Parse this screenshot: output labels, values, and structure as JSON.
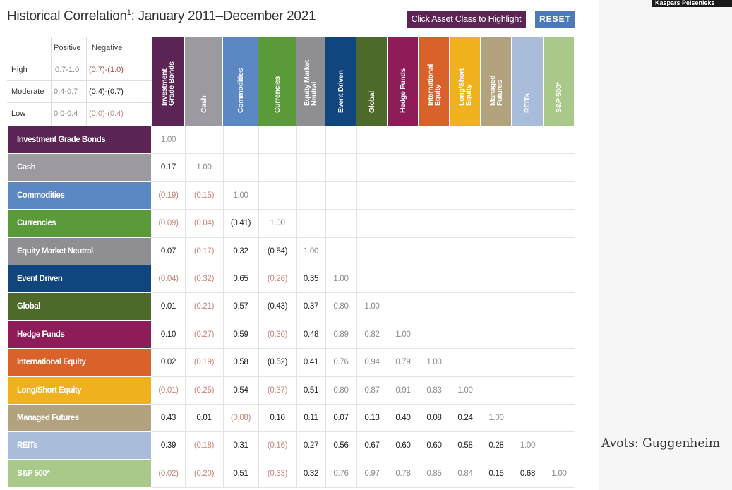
{
  "title": "Historical Correlation",
  "title_sup": "1",
  "title_suffix": ": January 2011–December 2021",
  "buttons": {
    "highlight": "Click Asset Class to Highlight",
    "reset": "RESET"
  },
  "credit": "Kaspars Peisenieks",
  "source": "Avots: Guggenheim",
  "legend": {
    "headers": [
      "Positive",
      "Negative"
    ],
    "rows": [
      {
        "label": "High",
        "positive": "0.7-1.0",
        "negative": "(0.7)-(1.0)"
      },
      {
        "label": "Moderate",
        "positive": "0.4-0.7",
        "negative": "(0.4)-(0.7)"
      },
      {
        "label": "Low",
        "positive": "0.0-0.4",
        "negative": "(0.0)-(0.4)"
      }
    ]
  },
  "chart_data": {
    "type": "table",
    "title": "Historical Correlation: January 2011–December 2021",
    "assets": [
      {
        "name": "Investment Grade Bonds",
        "col_label": "Investment\nGrade Bonds",
        "color": "#5b2454"
      },
      {
        "name": "Cash",
        "col_label": "Cash",
        "color": "#9c99a0"
      },
      {
        "name": "Commodities",
        "col_label": "Commodities",
        "color": "#5b87c2"
      },
      {
        "name": "Currencies",
        "col_label": "Currencies",
        "color": "#5a9a3a"
      },
      {
        "name": "Equity Market Neutral",
        "col_label": "Equity Market\nNeutral",
        "color": "#8f8e92"
      },
      {
        "name": "Event Driven",
        "col_label": "Event Driven",
        "color": "#10457e"
      },
      {
        "name": "Global",
        "col_label": "Global",
        "color": "#4e6a2a"
      },
      {
        "name": "Hedge Funds",
        "col_label": "Hedge Funds",
        "color": "#8e1c59"
      },
      {
        "name": "International Equity",
        "col_label": "International\nEquity",
        "color": "#d9612a"
      },
      {
        "name": "Long/Short Equity",
        "col_label": "Long/Short\nEquity",
        "color": "#f0b11e"
      },
      {
        "name": "Managed Futures",
        "col_label": "Managed\nFutures",
        "color": "#b3a27e"
      },
      {
        "name": "REITs",
        "col_label": "REITs",
        "color": "#a9bddb"
      },
      {
        "name": "S&P 500*",
        "col_label": "S&P 500*",
        "color": "#a8c98a"
      }
    ],
    "matrix": [
      [
        "1.00"
      ],
      [
        "0.17",
        "1.00"
      ],
      [
        "(0.19)",
        "(0.15)",
        "1.00"
      ],
      [
        "(0.09)",
        "(0.04)",
        "(0.41)",
        "1.00"
      ],
      [
        "0.07",
        "(0.17)",
        "0.32",
        "(0.54)",
        "1.00"
      ],
      [
        "(0.04)",
        "(0.32)",
        "0.65",
        "(0.26)",
        "0.35",
        "1.00"
      ],
      [
        "0.01",
        "(0.21)",
        "0.57",
        "(0.43)",
        "0.37",
        "0.80",
        "1.00"
      ],
      [
        "0.10",
        "(0.27)",
        "0.59",
        "(0.30)",
        "0.48",
        "0.89",
        "0.82",
        "1.00"
      ],
      [
        "0.02",
        "(0.19)",
        "0.58",
        "(0.52)",
        "0.41",
        "0.76",
        "0.94",
        "0.79",
        "1.00"
      ],
      [
        "(0.01)",
        "(0.25)",
        "0.54",
        "(0.37)",
        "0.51",
        "0.80",
        "0.87",
        "0.91",
        "0.83",
        "1.00"
      ],
      [
        "0.43",
        "0.01",
        "(0.08)",
        "0.10",
        "0.11",
        "0.07",
        "0.13",
        "0.40",
        "0.08",
        "0.24",
        "1.00"
      ],
      [
        "0.39",
        "(0.18)",
        "0.31",
        "(0.16)",
        "0.27",
        "0.56",
        "0.67",
        "0.60",
        "0.60",
        "0.58",
        "0.28",
        "1.00"
      ],
      [
        "(0.02)",
        "(0.20)",
        "0.51",
        "(0.33)",
        "0.32",
        "0.76",
        "0.97",
        "0.78",
        "0.85",
        "0.84",
        "0.15",
        "0.68",
        "1.00"
      ]
    ]
  }
}
